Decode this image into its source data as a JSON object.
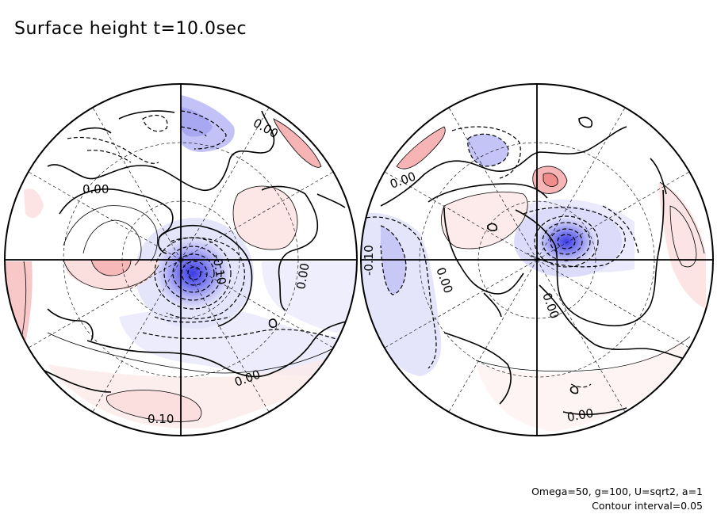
{
  "title": "Surface height t=10.0sec",
  "footer": {
    "parameters": "Omega=50, g=100, U=sqrt2, a=1",
    "contour_interval": "Contour interval=0.05"
  },
  "colors": {
    "positive": "#f08080",
    "negative": "#6a6aee",
    "line": "#000000"
  },
  "left_hemisphere": {
    "contour_labels": [
      {
        "text": "0.00",
        "angle": 30
      },
      {
        "text": "0.00",
        "angle": 0
      },
      {
        "text": "-0.10",
        "angle": 80
      },
      {
        "text": "0.00",
        "angle": -80
      },
      {
        "text": "0.00",
        "angle": -20
      },
      {
        "text": "0.10",
        "angle": 0
      }
    ]
  },
  "right_hemisphere": {
    "contour_labels": [
      {
        "text": "0.00",
        "angle": -20
      },
      {
        "text": "-0.10",
        "angle": -90
      },
      {
        "text": "0.00",
        "angle": 70
      },
      {
        "text": "0.00",
        "angle": 70
      },
      {
        "text": "0.00",
        "angle": -10
      }
    ]
  }
}
